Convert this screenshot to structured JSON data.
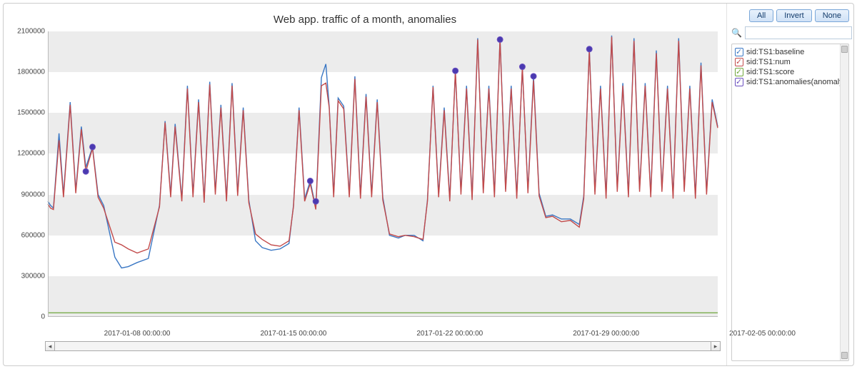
{
  "chart": {
    "type": "line",
    "title": "Web app. traffic of a month, anomalies",
    "title_fontsize": 15,
    "background_color": "#ffffff",
    "band_color": "#ececec",
    "axis_color": "#bbbbbb",
    "label_color": "#444444",
    "label_fontsize": 10,
    "y": {
      "min": 0,
      "max": 2100000,
      "tick_step": 300000,
      "ticks": [
        0,
        300000,
        600000,
        900000,
        1200000,
        1500000,
        1800000,
        2100000
      ]
    },
    "x": {
      "min": 0,
      "max": 30,
      "ticks": [
        {
          "pos": 4,
          "label": "2017-01-08 00:00:00"
        },
        {
          "pos": 11,
          "label": "2017-01-15 00:00:00"
        },
        {
          "pos": 18,
          "label": "2017-01-22 00:00:00"
        },
        {
          "pos": 25,
          "label": "2017-01-29 00:00:00"
        },
        {
          "pos": 32,
          "label": "2017-02-05 00:00:00"
        }
      ]
    },
    "series": {
      "baseline": {
        "label": "sid:TS1:baseline",
        "color": "#3a77c4",
        "stroke_width": 1.4,
        "dash": null,
        "data": [
          [
            0.0,
            850000
          ],
          [
            0.12,
            820000
          ],
          [
            0.25,
            800000
          ],
          [
            0.5,
            1350000
          ],
          [
            0.7,
            900000
          ],
          [
            1.0,
            1580000
          ],
          [
            1.25,
            930000
          ],
          [
            1.5,
            1400000
          ],
          [
            1.7,
            1100000
          ],
          [
            2.0,
            1250000
          ],
          [
            2.25,
            900000
          ],
          [
            2.5,
            820000
          ],
          [
            3.0,
            440000
          ],
          [
            3.3,
            360000
          ],
          [
            3.6,
            370000
          ],
          [
            4.0,
            400000
          ],
          [
            4.5,
            430000
          ],
          [
            5.0,
            820000
          ],
          [
            5.25,
            1440000
          ],
          [
            5.5,
            900000
          ],
          [
            5.7,
            1420000
          ],
          [
            6.0,
            870000
          ],
          [
            6.25,
            1700000
          ],
          [
            6.5,
            900000
          ],
          [
            6.75,
            1600000
          ],
          [
            7.0,
            860000
          ],
          [
            7.25,
            1730000
          ],
          [
            7.5,
            920000
          ],
          [
            7.75,
            1560000
          ],
          [
            8.0,
            870000
          ],
          [
            8.25,
            1720000
          ],
          [
            8.5,
            910000
          ],
          [
            8.75,
            1540000
          ],
          [
            9.0,
            860000
          ],
          [
            9.3,
            560000
          ],
          [
            9.6,
            510000
          ],
          [
            10.0,
            490000
          ],
          [
            10.4,
            500000
          ],
          [
            10.8,
            540000
          ],
          [
            11.0,
            820000
          ],
          [
            11.25,
            1540000
          ],
          [
            11.5,
            870000
          ],
          [
            11.75,
            1000000
          ],
          [
            12.0,
            800000
          ],
          [
            12.25,
            1760000
          ],
          [
            12.45,
            1860000
          ],
          [
            12.6,
            1550000
          ],
          [
            12.8,
            900000
          ],
          [
            13.0,
            1610000
          ],
          [
            13.25,
            1550000
          ],
          [
            13.5,
            900000
          ],
          [
            13.75,
            1770000
          ],
          [
            14.0,
            890000
          ],
          [
            14.25,
            1640000
          ],
          [
            14.5,
            900000
          ],
          [
            14.75,
            1600000
          ],
          [
            15.0,
            880000
          ],
          [
            15.3,
            600000
          ],
          [
            15.7,
            580000
          ],
          [
            16.0,
            600000
          ],
          [
            16.4,
            600000
          ],
          [
            16.8,
            560000
          ],
          [
            17.0,
            860000
          ],
          [
            17.25,
            1700000
          ],
          [
            17.5,
            900000
          ],
          [
            17.75,
            1540000
          ],
          [
            18.0,
            870000
          ],
          [
            18.25,
            1800000
          ],
          [
            18.5,
            920000
          ],
          [
            18.75,
            1700000
          ],
          [
            19.0,
            880000
          ],
          [
            19.25,
            2050000
          ],
          [
            19.5,
            930000
          ],
          [
            19.75,
            1700000
          ],
          [
            20.0,
            900000
          ],
          [
            20.25,
            2050000
          ],
          [
            20.5,
            940000
          ],
          [
            20.75,
            1700000
          ],
          [
            21.0,
            890000
          ],
          [
            21.25,
            1830000
          ],
          [
            21.5,
            930000
          ],
          [
            21.75,
            1770000
          ],
          [
            22.0,
            910000
          ],
          [
            22.3,
            740000
          ],
          [
            22.6,
            750000
          ],
          [
            23.0,
            720000
          ],
          [
            23.4,
            720000
          ],
          [
            23.8,
            680000
          ],
          [
            24.0,
            890000
          ],
          [
            24.25,
            1970000
          ],
          [
            24.5,
            920000
          ],
          [
            24.75,
            1700000
          ],
          [
            25.0,
            890000
          ],
          [
            25.25,
            2070000
          ],
          [
            25.5,
            940000
          ],
          [
            25.75,
            1720000
          ],
          [
            26.0,
            900000
          ],
          [
            26.25,
            2050000
          ],
          [
            26.5,
            940000
          ],
          [
            26.75,
            1720000
          ],
          [
            27.0,
            900000
          ],
          [
            27.25,
            1960000
          ],
          [
            27.5,
            940000
          ],
          [
            27.75,
            1700000
          ],
          [
            28.0,
            890000
          ],
          [
            28.25,
            2050000
          ],
          [
            28.5,
            940000
          ],
          [
            28.75,
            1700000
          ],
          [
            29.0,
            890000
          ],
          [
            29.25,
            1870000
          ],
          [
            29.5,
            920000
          ],
          [
            29.75,
            1600000
          ],
          [
            30.0,
            1400000
          ]
        ]
      },
      "num": {
        "label": "sid:TS1:num",
        "color": "#c24a4a",
        "stroke_width": 1.4,
        "dash": null,
        "data": [
          [
            0.0,
            830000
          ],
          [
            0.12,
            800000
          ],
          [
            0.25,
            790000
          ],
          [
            0.5,
            1300000
          ],
          [
            0.7,
            880000
          ],
          [
            1.0,
            1560000
          ],
          [
            1.25,
            910000
          ],
          [
            1.5,
            1380000
          ],
          [
            1.7,
            1070000
          ],
          [
            2.0,
            1240000
          ],
          [
            2.25,
            880000
          ],
          [
            2.5,
            800000
          ],
          [
            3.0,
            550000
          ],
          [
            3.3,
            530000
          ],
          [
            3.6,
            500000
          ],
          [
            4.0,
            470000
          ],
          [
            4.5,
            500000
          ],
          [
            5.0,
            810000
          ],
          [
            5.25,
            1430000
          ],
          [
            5.5,
            880000
          ],
          [
            5.7,
            1400000
          ],
          [
            6.0,
            850000
          ],
          [
            6.25,
            1680000
          ],
          [
            6.5,
            880000
          ],
          [
            6.75,
            1580000
          ],
          [
            7.0,
            840000
          ],
          [
            7.25,
            1710000
          ],
          [
            7.5,
            900000
          ],
          [
            7.75,
            1540000
          ],
          [
            8.0,
            850000
          ],
          [
            8.25,
            1700000
          ],
          [
            8.5,
            890000
          ],
          [
            8.75,
            1520000
          ],
          [
            9.0,
            840000
          ],
          [
            9.3,
            610000
          ],
          [
            9.6,
            570000
          ],
          [
            10.0,
            530000
          ],
          [
            10.4,
            520000
          ],
          [
            10.8,
            560000
          ],
          [
            11.0,
            810000
          ],
          [
            11.25,
            1520000
          ],
          [
            11.5,
            850000
          ],
          [
            11.75,
            980000
          ],
          [
            12.0,
            790000
          ],
          [
            12.25,
            1700000
          ],
          [
            12.45,
            1720000
          ],
          [
            12.6,
            1540000
          ],
          [
            12.8,
            880000
          ],
          [
            13.0,
            1590000
          ],
          [
            13.25,
            1530000
          ],
          [
            13.5,
            880000
          ],
          [
            13.75,
            1750000
          ],
          [
            14.0,
            870000
          ],
          [
            14.25,
            1620000
          ],
          [
            14.5,
            880000
          ],
          [
            14.75,
            1580000
          ],
          [
            15.0,
            860000
          ],
          [
            15.3,
            610000
          ],
          [
            15.7,
            590000
          ],
          [
            16.0,
            600000
          ],
          [
            16.4,
            590000
          ],
          [
            16.8,
            570000
          ],
          [
            17.0,
            850000
          ],
          [
            17.25,
            1690000
          ],
          [
            17.5,
            880000
          ],
          [
            17.75,
            1520000
          ],
          [
            18.0,
            850000
          ],
          [
            18.25,
            1810000
          ],
          [
            18.5,
            900000
          ],
          [
            18.75,
            1680000
          ],
          [
            19.0,
            860000
          ],
          [
            19.25,
            2040000
          ],
          [
            19.5,
            910000
          ],
          [
            19.75,
            1680000
          ],
          [
            20.0,
            880000
          ],
          [
            20.25,
            2040000
          ],
          [
            20.5,
            920000
          ],
          [
            20.75,
            1680000
          ],
          [
            21.0,
            870000
          ],
          [
            21.25,
            1840000
          ],
          [
            21.5,
            910000
          ],
          [
            21.75,
            1740000
          ],
          [
            22.0,
            890000
          ],
          [
            22.3,
            730000
          ],
          [
            22.6,
            740000
          ],
          [
            23.0,
            700000
          ],
          [
            23.4,
            710000
          ],
          [
            23.8,
            660000
          ],
          [
            24.0,
            870000
          ],
          [
            24.25,
            1960000
          ],
          [
            24.5,
            900000
          ],
          [
            24.75,
            1680000
          ],
          [
            25.0,
            870000
          ],
          [
            25.25,
            2060000
          ],
          [
            25.5,
            920000
          ],
          [
            25.75,
            1700000
          ],
          [
            26.0,
            880000
          ],
          [
            26.25,
            2030000
          ],
          [
            26.5,
            920000
          ],
          [
            26.75,
            1700000
          ],
          [
            27.0,
            880000
          ],
          [
            27.25,
            1940000
          ],
          [
            27.5,
            920000
          ],
          [
            27.75,
            1680000
          ],
          [
            28.0,
            870000
          ],
          [
            28.25,
            2030000
          ],
          [
            28.5,
            920000
          ],
          [
            28.75,
            1680000
          ],
          [
            29.0,
            870000
          ],
          [
            29.25,
            1850000
          ],
          [
            29.5,
            900000
          ],
          [
            29.75,
            1580000
          ],
          [
            30.0,
            1390000
          ]
        ]
      },
      "score": {
        "label": "sid:TS1:score",
        "color": "#6fa63b",
        "stroke_width": 1.2,
        "dash": null,
        "data": [
          [
            0.0,
            30000
          ],
          [
            30.0,
            30000
          ]
        ]
      },
      "anomalies": {
        "label": "sid:TS1:anomalies(anomaly)",
        "color": "#6a4fbf",
        "marker": "circle",
        "marker_fill": "#4a3ab0",
        "marker_size": 4,
        "points": [
          [
            1.7,
            1070000
          ],
          [
            2.0,
            1250000
          ],
          [
            11.75,
            1000000
          ],
          [
            12.0,
            850000
          ],
          [
            18.25,
            1810000
          ],
          [
            20.25,
            2040000
          ],
          [
            21.25,
            1840000
          ],
          [
            21.75,
            1770000
          ],
          [
            24.25,
            1970000
          ]
        ]
      }
    }
  },
  "side": {
    "buttons": {
      "all": "All",
      "invert": "Invert",
      "none": "None"
    },
    "search_placeholder": "",
    "series_list": [
      {
        "key": "baseline",
        "checked": true
      },
      {
        "key": "num",
        "checked": true
      },
      {
        "key": "score",
        "checked": true
      },
      {
        "key": "anomalies",
        "checked": true
      }
    ]
  }
}
